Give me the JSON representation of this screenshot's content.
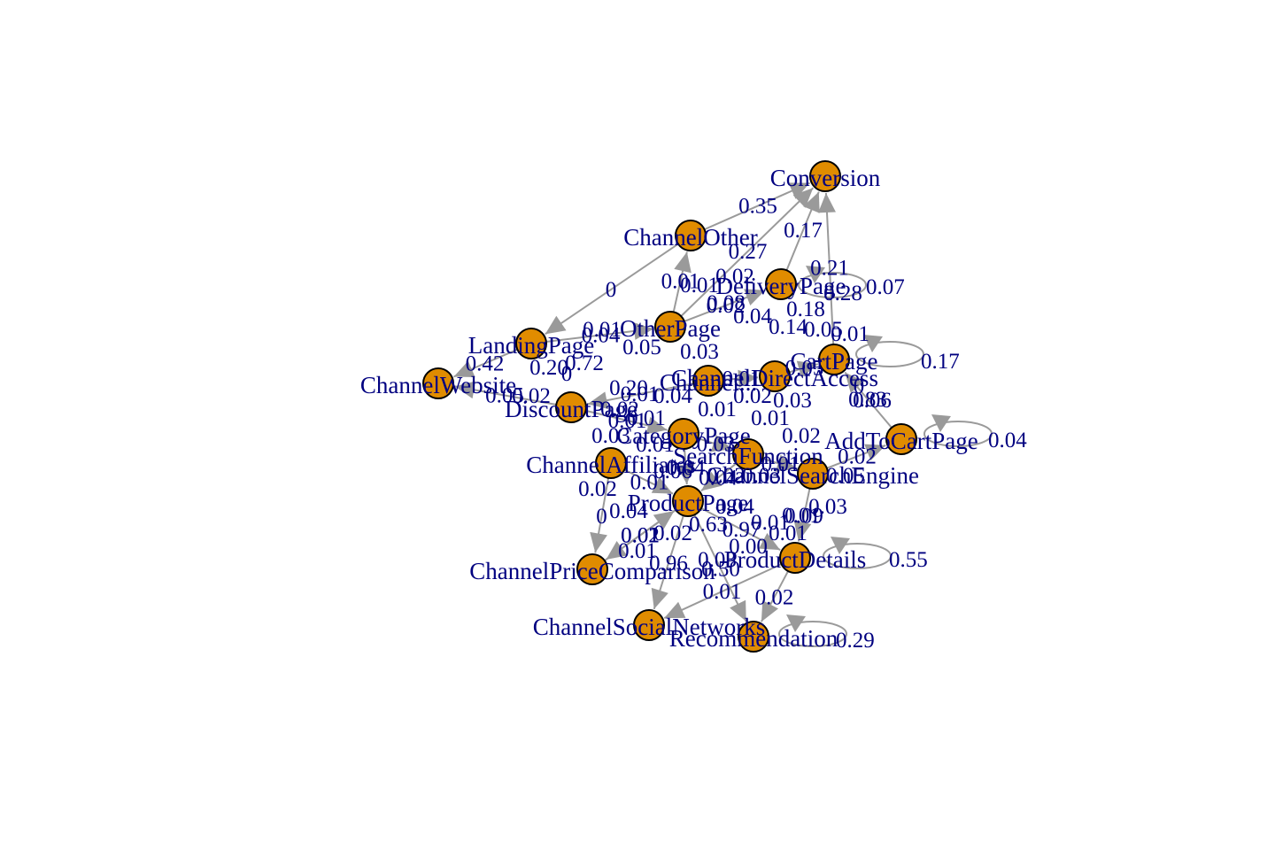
{
  "graph": {
    "node_color": "#e08c00",
    "edge_color": "#9a9a9a",
    "label_color": "#000080",
    "nodes": [
      {
        "id": "Conversion",
        "label": "Conversion"
      },
      {
        "id": "ChannelOther",
        "label": "ChannelOther"
      },
      {
        "id": "DeliveryPage",
        "label": "DeliveryPage"
      },
      {
        "id": "OtherPage",
        "label": "OtherPage"
      },
      {
        "id": "LandingPage",
        "label": "LandingPage"
      },
      {
        "id": "CartPage",
        "label": "CartPage"
      },
      {
        "id": "ChannelWebsite",
        "label": "ChannelWebsite"
      },
      {
        "id": "ChannelDirectAccess",
        "label": "ChannelDirectAccess"
      },
      {
        "id": "DiscountPage",
        "label": "DiscountPage"
      },
      {
        "id": "CategoryPage",
        "label": "CategoryPage"
      },
      {
        "id": "SearchFunction",
        "label": "SearchFunction"
      },
      {
        "id": "AddToCartPage",
        "label": "AddToCartPage"
      },
      {
        "id": "ChannelAffiliates",
        "label": "ChannelAffiliates"
      },
      {
        "id": "ChannelSearchEngine",
        "label": "ChannelSearchEngine"
      },
      {
        "id": "ProductPage",
        "label": "ProductPage"
      },
      {
        "id": "ProductDetails",
        "label": "ProductDetails"
      },
      {
        "id": "ChannelPriceComparison",
        "label": "ChannelPriceComparison"
      },
      {
        "id": "ChannelSocialNetworks",
        "label": "ChannelSocialNetworks"
      },
      {
        "id": "Recommendation",
        "label": "Recommendation"
      },
      {
        "id": "Center",
        "label": "Channel..."
      }
    ],
    "edges": [
      {
        "from": "ChannelOther",
        "to": "Conversion",
        "label": "0.35"
      },
      {
        "from": "DeliveryPage",
        "to": "Conversion",
        "label": "0.17"
      },
      {
        "from": "OtherPage",
        "to": "DeliveryPage",
        "label": "0.02"
      },
      {
        "from": "ChannelOther",
        "to": "LandingPage",
        "label": "0"
      },
      {
        "from": "OtherPage",
        "to": "ChannelOther",
        "label": "0.01"
      },
      {
        "from": "OtherPage",
        "to": "Conversion",
        "label": "0.27"
      },
      {
        "from": "CartPage",
        "to": "Conversion",
        "label": "0.21"
      },
      {
        "from": "LandingPage",
        "to": "ChannelWebsite",
        "label": "0.42"
      },
      {
        "from": "LandingPage",
        "to": "OtherPage",
        "label": "0.04"
      },
      {
        "from": "DiscountPage",
        "to": "ChannelWebsite",
        "label": "0.05"
      },
      {
        "from": "ChannelAffiliates",
        "to": "ChannelPriceComparison",
        "label": "0"
      },
      {
        "from": "ProductPage",
        "to": "ChannelPriceComparison",
        "label": "0.02"
      },
      {
        "from": "ProductPage",
        "to": "ProductDetails",
        "label": "0.97"
      },
      {
        "from": "ProductPage",
        "to": "ChannelSocialNetworks",
        "label": "0.96"
      },
      {
        "from": "ProductPage",
        "to": "Recommendation",
        "label": "0.50"
      },
      {
        "from": "ProductDetails",
        "to": "Recommendation",
        "label": "0.02"
      },
      {
        "from": "ProductDetails",
        "to": "ChannelSocialNetworks",
        "label": "0.01"
      },
      {
        "from": "ChannelSearchEngine",
        "to": "ProductDetails",
        "label": "0.09"
      },
      {
        "from": "AddToCartPage",
        "to": "CartPage",
        "label": "0.83"
      },
      {
        "from": "ChannelSearchEngine",
        "to": "AddToCartPage",
        "label": "0.02"
      },
      {
        "from": "SearchFunction",
        "to": "ChannelSearchEngine",
        "label": "0.01"
      },
      {
        "from": "CategoryPage",
        "to": "ProductPage",
        "label": "0.04"
      },
      {
        "from": "ChannelDirectAccess",
        "to": "CartPage",
        "label": "0.05"
      },
      {
        "from": "DiscountPage",
        "to": "CategoryPage",
        "label": "0.01"
      },
      {
        "from": "ChannelAffiliates",
        "to": "ProductPage",
        "label": "0.01"
      },
      {
        "from": "Center",
        "to": "DiscountPage",
        "label": "0.01"
      },
      {
        "from": "CategoryPage",
        "to": "SearchFunction",
        "label": "0.03"
      },
      {
        "from": "SearchFunction",
        "to": "ProductPage",
        "label": "0.04"
      },
      {
        "from": "ChannelPriceComparison",
        "to": "ProductPage",
        "label": "0.01"
      },
      {
        "from": "Center",
        "to": "ChannelDirectAccess",
        "label": "0.01"
      }
    ],
    "self_loops": [
      {
        "node": "DeliveryPage",
        "label": "0.07"
      },
      {
        "node": "CartPage",
        "label": "0.17"
      },
      {
        "node": "AddToCartPage",
        "label": "0.04"
      },
      {
        "node": "ProductDetails",
        "label": "0.55"
      },
      {
        "node": "Recommendation",
        "label": "0.29"
      }
    ],
    "extra_edge_labels": [
      "0.28",
      "0.18",
      "0.14",
      "0.05",
      "0.01",
      "0.72",
      "0.20",
      "0.06",
      "0",
      "0.20",
      "0.02",
      "0.03",
      "0.63",
      "0.04",
      "0.01",
      "0.01",
      "0.05",
      "0.03",
      "0.08",
      "0.04",
      "0.02",
      "0.01",
      "0.03",
      "0.01",
      "0.02",
      "0.06",
      "0.02",
      "0.04",
      "0.02",
      "0.01",
      "0.00",
      "0.01",
      "0.03",
      "0.05",
      "0.02",
      "0",
      "0.01",
      "0.01",
      "0.02",
      "0.04",
      "0.01",
      "0.03",
      "0.01",
      "0.02",
      "0.03"
    ]
  }
}
